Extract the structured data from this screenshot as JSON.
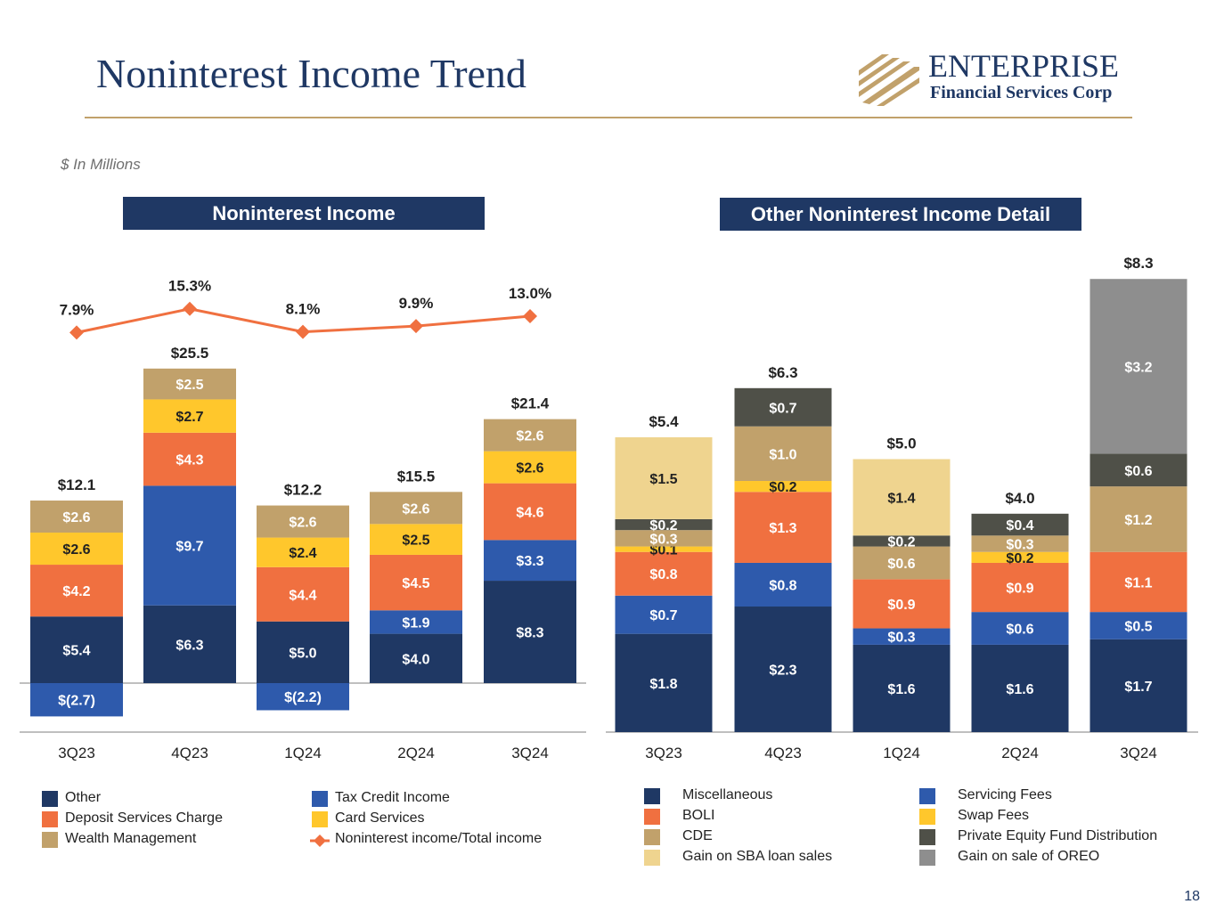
{
  "title": "Noninterest Income Trend",
  "logo": {
    "name": "ENTERPRISE",
    "subtitle": "Financial Services Corp"
  },
  "units_note": "$ In Millions",
  "page_number": "18",
  "chart_data": [
    {
      "type": "bar",
      "stacked": true,
      "title": "Noninterest Income",
      "categories": [
        "3Q23",
        "4Q23",
        "1Q24",
        "2Q24",
        "3Q24"
      ],
      "series": [
        {
          "name": "Other",
          "color": "#1f3864",
          "values": [
            5.4,
            6.3,
            5.0,
            4.0,
            8.3
          ],
          "labels": [
            "$5.4",
            "$6.3",
            "$5.0",
            "$4.0",
            "$8.3"
          ]
        },
        {
          "name": "Tax Credit Income",
          "color": "#2e5aac",
          "values": [
            -2.7,
            9.7,
            -2.2,
            1.9,
            3.3
          ],
          "labels": [
            "$(2.7)",
            "$9.7",
            "$(2.2)",
            "$1.9",
            "$3.3"
          ]
        },
        {
          "name": "Deposit Services Charge",
          "color": "#f07040",
          "values": [
            4.2,
            4.3,
            4.4,
            4.5,
            4.6
          ],
          "labels": [
            "$4.2",
            "$4.3",
            "$4.4",
            "$4.5",
            "$4.6"
          ]
        },
        {
          "name": "Card Services",
          "color": "#ffc72c",
          "values": [
            2.6,
            2.7,
            2.4,
            2.5,
            2.6
          ],
          "labels": [
            "$2.6",
            "$2.7",
            "$2.4",
            "$2.5",
            "$2.6"
          ]
        },
        {
          "name": "Wealth Management",
          "color": "#c1a16b",
          "values": [
            2.6,
            2.5,
            2.6,
            2.6,
            2.6
          ],
          "labels": [
            "$2.6",
            "$2.5",
            "$2.6",
            "$2.6",
            "$2.6"
          ]
        }
      ],
      "totals": [
        "$12.1",
        "$25.5",
        "$12.2",
        "$15.5",
        "$21.4"
      ],
      "line_series": {
        "name": "Noninterest income/Total income",
        "color": "#f07040",
        "values": [
          7.9,
          15.3,
          8.1,
          9.9,
          13.0
        ],
        "labels": [
          "7.9%",
          "15.3%",
          "8.1%",
          "9.9%",
          "13.0%"
        ]
      },
      "legend_order": [
        "Other",
        "Tax Credit Income",
        "Deposit Services Charge",
        "Card Services",
        "Wealth Management",
        "Noninterest income/Total income"
      ]
    },
    {
      "type": "bar",
      "stacked": true,
      "title": "Other Noninterest Income Detail",
      "categories": [
        "3Q23",
        "4Q23",
        "1Q24",
        "2Q24",
        "3Q24"
      ],
      "series": [
        {
          "name": "Miscellaneous",
          "color": "#1f3864",
          "values": [
            1.8,
            2.3,
            1.6,
            1.6,
            1.7
          ],
          "labels": [
            "$1.8",
            "$2.3",
            "$1.6",
            "$1.6",
            "$1.7"
          ]
        },
        {
          "name": "Servicing Fees",
          "color": "#2e5aac",
          "values": [
            0.7,
            0.8,
            0.3,
            0.6,
            0.5
          ],
          "labels": [
            "$0.7",
            "$0.8",
            "$0.3",
            "$0.6",
            "$0.5"
          ]
        },
        {
          "name": "BOLI",
          "color": "#f07040",
          "values": [
            0.8,
            1.3,
            0.9,
            0.9,
            1.1
          ],
          "labels": [
            "$0.8",
            "$1.3",
            "$0.9",
            "$0.9",
            "$1.1"
          ]
        },
        {
          "name": "Swap Fees",
          "color": "#ffc72c",
          "values": [
            0.1,
            0.2,
            0,
            0.2,
            0
          ],
          "labels": [
            "$0.1",
            "$0.2",
            "",
            "$0.2",
            ""
          ]
        },
        {
          "name": "CDE",
          "color": "#c1a16b",
          "values": [
            0.3,
            1.0,
            0.6,
            0.3,
            1.2
          ],
          "labels": [
            "$0.3",
            "$1.0",
            "$0.6",
            "$0.3",
            "$1.2"
          ]
        },
        {
          "name": "Private Equity Fund Distribution",
          "color": "#4f5048",
          "values": [
            0.2,
            0.7,
            0.2,
            0.4,
            0.6
          ],
          "labels": [
            "$0.2",
            "$0.7",
            "$0.2",
            "$0.4",
            "$0.6"
          ]
        },
        {
          "name": "Gain on SBA loan sales",
          "color": "#efd48f",
          "values": [
            1.5,
            0,
            1.4,
            0,
            0
          ],
          "labels": [
            "$1.5",
            "",
            "$1.4",
            "",
            ""
          ]
        },
        {
          "name": "Gain on sale of OREO",
          "color": "#8e8e8e",
          "values": [
            0,
            0,
            0,
            0,
            3.2
          ],
          "labels": [
            "",
            "",
            "",
            "",
            "$3.2"
          ]
        }
      ],
      "totals": [
        "$5.4",
        "$6.3",
        "$5.0",
        "$4.0",
        "$8.3"
      ],
      "legend_order": [
        "Miscellaneous",
        "Servicing Fees",
        "BOLI",
        "Swap Fees",
        "CDE",
        "Private Equity Fund Distribution",
        "Gain on SBA loan sales",
        "Gain on sale of OREO"
      ]
    }
  ]
}
